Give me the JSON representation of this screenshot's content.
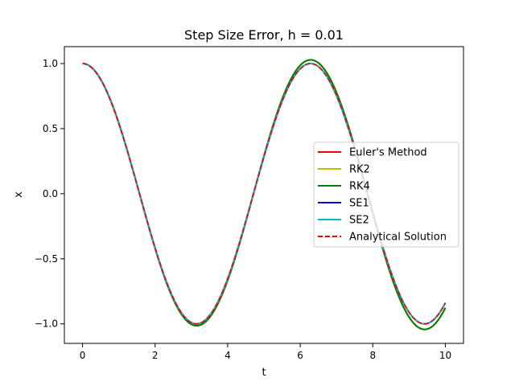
{
  "chart_data": {
    "type": "line",
    "title": "Step Size Error, h = 0.01",
    "xlabel": "t",
    "ylabel": "x",
    "xlim": [
      -0.5,
      10.5
    ],
    "ylim": [
      -1.15,
      1.13
    ],
    "xticks": [
      0,
      2,
      4,
      6,
      8,
      10
    ],
    "xtick_labels": [
      "0",
      "2",
      "4",
      "6",
      "8",
      "10"
    ],
    "yticks": [
      -1.0,
      -0.5,
      0.0,
      0.5,
      1.0
    ],
    "ytick_labels": [
      "−1.0",
      "−0.5",
      "0.0",
      "0.5",
      "1.0"
    ],
    "grid": false,
    "legend_position": "center-right",
    "x_range": [
      0,
      10
    ],
    "series": [
      {
        "name": "Euler's Method",
        "color": "#ff0000",
        "dash": "solid",
        "amplitude_growth": 0.0045,
        "x": [
          0,
          2,
          4,
          6,
          8,
          10
        ],
        "y": [
          1.0,
          -0.4225,
          -0.6745,
          0.9887,
          -0.1512,
          -0.8858
        ]
      },
      {
        "name": "RK2",
        "color": "#bfbf00",
        "dash": "solid",
        "amplitude_growth": 0.0045,
        "x": [
          0,
          2,
          4,
          6,
          8,
          10
        ],
        "y": [
          1.0,
          -0.4225,
          -0.6745,
          0.9887,
          -0.1512,
          -0.8858
        ]
      },
      {
        "name": "RK4",
        "color": "#008000",
        "dash": "solid",
        "amplitude_growth": 0.0045,
        "x": [
          0,
          2,
          4,
          6,
          8,
          10
        ],
        "y": [
          1.0,
          -0.4225,
          -0.6745,
          0.9887,
          -0.1512,
          -0.8858
        ]
      },
      {
        "name": "SE1",
        "color": "#0000ff",
        "dash": "solid",
        "amplitude_growth": 0.0,
        "x": [
          0,
          2,
          4,
          6,
          8,
          10
        ],
        "y": [
          1.0,
          -0.4161,
          -0.6536,
          0.9602,
          -0.1455,
          -0.8391
        ]
      },
      {
        "name": "SE2",
        "color": "#00bfbf",
        "dash": "solid",
        "amplitude_growth": 0.0,
        "x": [
          0,
          2,
          4,
          6,
          8,
          10
        ],
        "y": [
          1.0,
          -0.4161,
          -0.6536,
          0.9602,
          -0.1455,
          -0.8391
        ]
      },
      {
        "name": "Analytical Solution",
        "color": "#ff0000",
        "dash": "dashed",
        "amplitude_growth": 0.0,
        "x": [
          0,
          2,
          4,
          6,
          8,
          10
        ],
        "y": [
          1.0,
          -0.4161,
          -0.6536,
          0.9602,
          -0.1455,
          -0.8391
        ]
      }
    ]
  }
}
